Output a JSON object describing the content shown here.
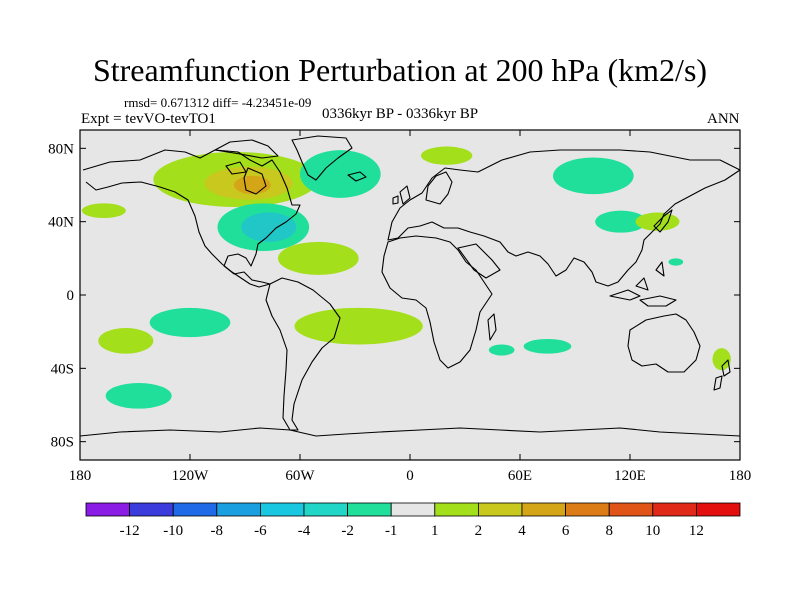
{
  "title": "Streamfunction Perturbation at 200 hPa (km2/s)",
  "stats": "rmsd= 0.671312 diff= -4.23451e-09",
  "experiment": "Expt = tevVO-tevTO1",
  "period": "0336kyr BP - 0336kyr BP",
  "season": "ANN",
  "colors": {
    "ocean_land_background": "#e6e6e6",
    "neg_1_2": "#1fdf9b",
    "neg_2_4": "#21c6c6",
    "pos_1_2": "#a3df1b",
    "pos_2_4": "#c8c81f",
    "pos_4_6": "#d4a517"
  },
  "map": {
    "projection": "cylindrical equidistant",
    "lon_range": [
      -180,
      180
    ],
    "lat_range": [
      -90,
      90
    ],
    "x_ticks": [
      "180",
      "120W",
      "60W",
      "0",
      "60E",
      "120E",
      "180"
    ],
    "y_ticks": [
      "80N",
      "40N",
      "0",
      "40S",
      "80S"
    ],
    "features": [
      {
        "name": "north-canada-positive",
        "lon": -95,
        "lat": 63,
        "rlon": 45,
        "rlat": 15,
        "level": "pos_1_2"
      },
      {
        "name": "north-canada-positive-core",
        "lon": -88,
        "lat": 61,
        "rlon": 24,
        "rlat": 9,
        "level": "pos_2_4"
      },
      {
        "name": "hudson-positive-center",
        "lon": -86,
        "lat": 60,
        "rlon": 10,
        "rlat": 5,
        "level": "pos_4_6"
      },
      {
        "name": "north-atlantic-negative",
        "lon": -38,
        "lat": 66,
        "rlon": 22,
        "rlat": 13,
        "level": "neg_1_2"
      },
      {
        "name": "scandinavia-positive",
        "lon": 20,
        "lat": 76,
        "rlon": 14,
        "rlat": 5,
        "level": "pos_1_2"
      },
      {
        "name": "siberia-negative",
        "lon": 100,
        "lat": 65,
        "rlon": 22,
        "rlat": 10,
        "level": "neg_1_2"
      },
      {
        "name": "pacific-west-positive",
        "lon": -167,
        "lat": 46,
        "rlon": 12,
        "rlat": 4,
        "level": "pos_1_2"
      },
      {
        "name": "east-us-negative",
        "lon": -80,
        "lat": 37,
        "rlon": 25,
        "rlat": 13,
        "level": "neg_1_2"
      },
      {
        "name": "east-us-negative-core",
        "lon": -77,
        "lat": 37,
        "rlon": 15,
        "rlat": 8,
        "level": "neg_2_4"
      },
      {
        "name": "caribbean-positive",
        "lon": -50,
        "lat": 20,
        "rlon": 22,
        "rlat": 9,
        "level": "pos_1_2"
      },
      {
        "name": "east-asia-negative",
        "lon": 115,
        "lat": 40,
        "rlon": 14,
        "rlat": 6,
        "level": "neg_1_2"
      },
      {
        "name": "east-asia-positive",
        "lon": 135,
        "lat": 40,
        "rlon": 12,
        "rlat": 5,
        "level": "pos_1_2"
      },
      {
        "name": "pacific-small-negative",
        "lon": 145,
        "lat": 18,
        "rlon": 4,
        "rlat": 2,
        "level": "neg_1_2"
      },
      {
        "name": "south-pacific-negative",
        "lon": -120,
        "lat": -15,
        "rlon": 22,
        "rlat": 8,
        "level": "neg_1_2"
      },
      {
        "name": "south-pacific-positive",
        "lon": -155,
        "lat": -25,
        "rlon": 15,
        "rlat": 7,
        "level": "pos_1_2"
      },
      {
        "name": "south-atlantic-positive",
        "lon": -28,
        "lat": -17,
        "rlon": 35,
        "rlat": 10,
        "level": "pos_1_2"
      },
      {
        "name": "south-indian-negative-1",
        "lon": 50,
        "lat": -30,
        "rlon": 7,
        "rlat": 3,
        "level": "neg_1_2"
      },
      {
        "name": "south-indian-negative-2",
        "lon": 75,
        "lat": -28,
        "rlon": 13,
        "rlat": 4,
        "level": "neg_1_2"
      },
      {
        "name": "new-zealand-positive",
        "lon": 170,
        "lat": -35,
        "rlon": 5,
        "rlat": 6,
        "level": "pos_1_2"
      },
      {
        "name": "southern-ocean-negative",
        "lon": -148,
        "lat": -55,
        "rlon": 18,
        "rlat": 7,
        "level": "neg_1_2"
      }
    ]
  },
  "colorbar": {
    "colors": [
      "#8a1ce6",
      "#3c3cdd",
      "#1f6ae6",
      "#1aa0e0",
      "#19c7e0",
      "#21d6c6",
      "#1fdf9b",
      "#e6e6e6",
      "#a3df1b",
      "#c8c81f",
      "#d4a517",
      "#db7c17",
      "#e05418",
      "#e02a17",
      "#e30e0e"
    ],
    "labels": [
      "-12",
      "-10",
      "-8",
      "-6",
      "-4",
      "-2",
      "-1",
      "1",
      "2",
      "4",
      "6",
      "8",
      "10",
      "12"
    ]
  }
}
